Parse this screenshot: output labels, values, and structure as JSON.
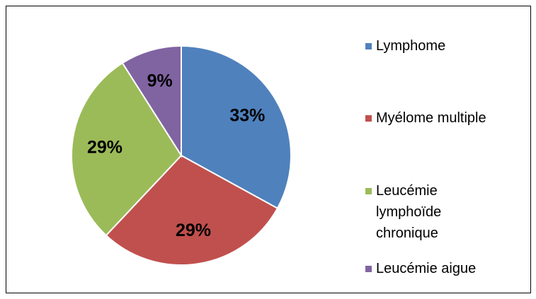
{
  "chart_data": {
    "type": "pie",
    "categories": [
      "Lymphome",
      "Myélome multiple",
      "Leucémie lymphoïde chronique",
      "Leucémie aigue"
    ],
    "values": [
      33,
      29,
      29,
      9
    ],
    "value_labels": [
      "33%",
      "29%",
      "29%",
      "9%"
    ],
    "colors": [
      "#4f81bd",
      "#c0504d",
      "#9bbb59",
      "#8064a2"
    ],
    "legend": "right"
  }
}
